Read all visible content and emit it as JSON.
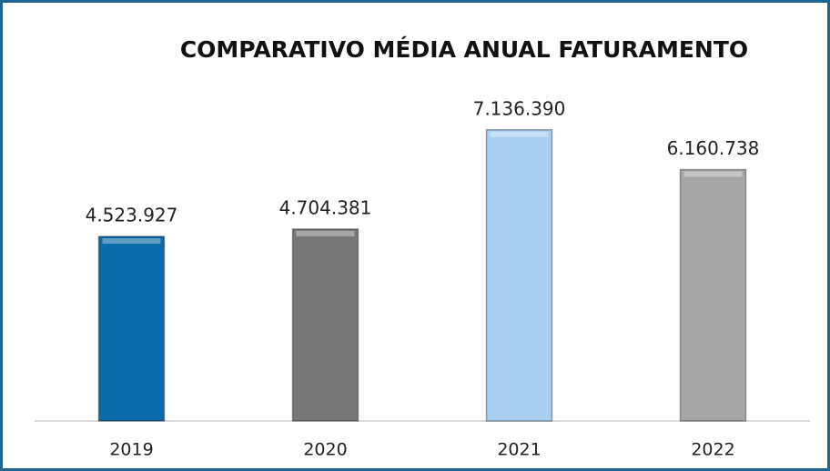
{
  "chart_data": {
    "type": "bar",
    "title": "COMPARATIVO MÉDIA ANUAL FATURAMENTO",
    "categories": [
      "2019",
      "2020",
      "2021",
      "2022"
    ],
    "values": [
      4523927,
      4704381,
      7136390,
      6160738
    ],
    "value_labels": [
      "4.523.927",
      "4.704.381",
      "7.136.390",
      "6.160.738"
    ],
    "colors": [
      "#0b6aa8",
      "#777777",
      "#a9cff2",
      "#a6a6a6"
    ],
    "ylim": [
      0,
      8000000
    ]
  }
}
